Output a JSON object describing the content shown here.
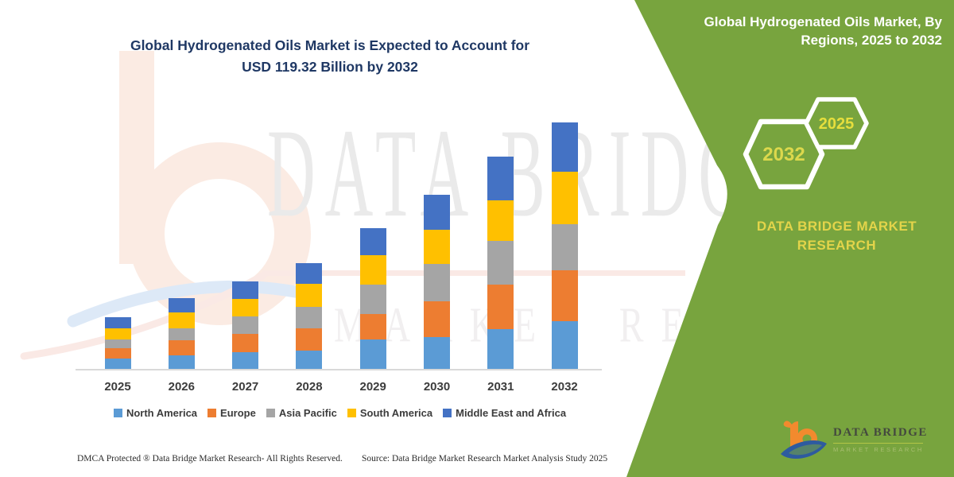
{
  "title": {
    "line1": "Global Hydrogenated Oils Market is Expected to Account for",
    "line2": "USD 119.32 Billion by 2032"
  },
  "panel": {
    "heading_line1": "Global Hydrogenated Oils Market, By",
    "heading_line2": "Regions, 2025 to 2032",
    "hexagon_end_year": "2032",
    "hexagon_start_year": "2025",
    "brand_line1": "DATA BRIDGE MARKET",
    "brand_line2": "RESEARCH",
    "colors": {
      "background": "#78A43E",
      "accent_text": "#E3D44A",
      "hexagon_stroke": "#FFFFFF",
      "hexagon_year_text": "#DCD84C"
    }
  },
  "logo": {
    "name": "DATA BRIDGE",
    "tagline": "MARKET RESEARCH"
  },
  "watermark": {
    "line1": "DATA BRIDGE",
    "line2": "MARKET RESEARCH"
  },
  "footer": {
    "left": "DMCA Protected ® Data Bridge Market Research-  All Rights Reserved.",
    "right": "Source: Data Bridge Market Research  Market Analysis Study 2025"
  },
  "chart_data": {
    "type": "bar",
    "stacked": true,
    "title": "Global Hydrogenated Oils Market is Expected to Account for USD 119.32 Billion by 2032",
    "unit": "USD Billion",
    "categories": [
      "2025",
      "2026",
      "2027",
      "2028",
      "2029",
      "2030",
      "2031",
      "2032"
    ],
    "series": [
      {
        "name": "North America",
        "color": "#5B9BD5",
        "values": [
          5.4,
          6.8,
          8.3,
          9.2,
          14.7,
          15.6,
          19.6,
          23.3
        ]
      },
      {
        "name": "Europe",
        "color": "#ED7D31",
        "values": [
          4.9,
          7.3,
          8.9,
          10.6,
          12.2,
          17.3,
          21.4,
          24.7
        ]
      },
      {
        "name": "Asia Pacific",
        "color": "#A5A5A5",
        "values": [
          4.2,
          6.0,
          8.7,
          10.5,
          14.1,
          18.3,
          21.1,
          22.4
        ]
      },
      {
        "name": "South America",
        "color": "#FFC000",
        "values": [
          5.4,
          7.7,
          8.2,
          11.0,
          14.1,
          16.2,
          19.6,
          25.2
        ]
      },
      {
        "name": "Middle East and Africa",
        "color": "#4472C4",
        "values": [
          5.4,
          6.8,
          8.4,
          10.2,
          13.2,
          17.0,
          21.1,
          23.72
        ]
      }
    ],
    "totals": [
      25.3,
      34.6,
      42.5,
      51.5,
      68.3,
      84.4,
      102.8,
      119.32
    ],
    "x_axis_labels": [
      "2025",
      "2026",
      "2027",
      "2028",
      "2029",
      "2030",
      "2031",
      "2032"
    ],
    "y_axis_visible": false,
    "gridlines": false,
    "ylim": [
      0,
      125
    ],
    "legend_position": "bottom"
  }
}
